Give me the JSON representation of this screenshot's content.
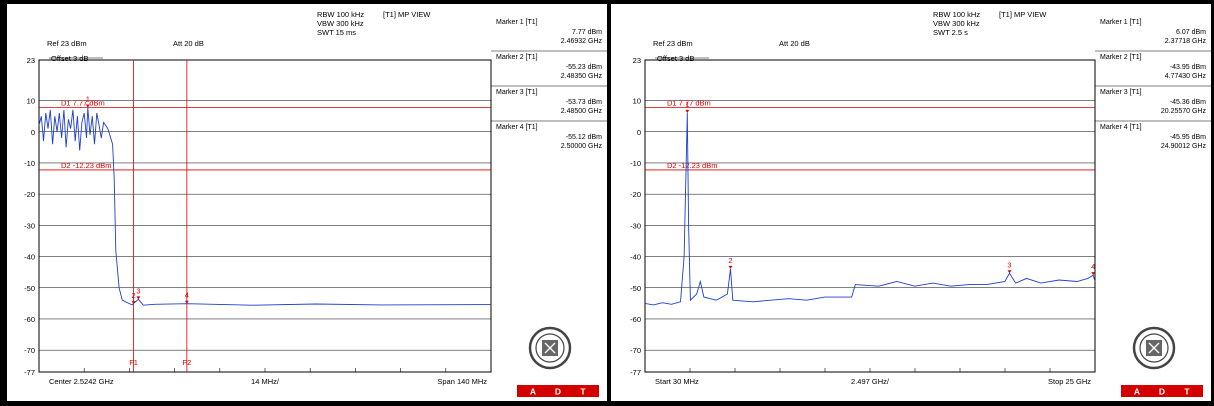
{
  "logo_text": "BUREAU VERITAS 1828",
  "colors": {
    "trace": "#1f3fd0",
    "line": "#d80000",
    "adt_bg": "#d40000",
    "grid": "#000000"
  },
  "chart_data": [
    {
      "type": "line",
      "header": {
        "rbw": "RBW 100 kHz",
        "vbw": "VBW 300 kHz",
        "swt": "SWT 15 ms",
        "mode": "[T1] MP VIEW",
        "ref": "Ref 23 dBm",
        "att": "Att  20 dB",
        "offset": "Offset 3 dB"
      },
      "y_labels": [
        "23",
        "10",
        "0",
        "-10",
        "-20",
        "-30",
        "-40",
        "-50",
        "-60",
        "-70",
        "-77"
      ],
      "ylim": [
        -77,
        23
      ],
      "x_labels": {
        "left": "Center 2.5242 GHz",
        "mid": "14 MHz/",
        "right": "Span 140 MHz"
      },
      "x_range_ghz": [
        2.4542,
        2.5942
      ],
      "display_lines": [
        {
          "label": "D1 7.77 dBm",
          "value": 7.77
        },
        {
          "label": "D2 -12.23 dBm",
          "value": -12.23
        }
      ],
      "frequency_lines": [
        {
          "label": "F1",
          "x": 2.4835
        },
        {
          "label": "F2",
          "x": 2.5
        }
      ],
      "markers": [
        {
          "title": "Marker 1 [T1]",
          "level": "7.77 dBm",
          "freq": "2.46932 GHz",
          "id": "1",
          "x": 2.46932,
          "y": 7.77
        },
        {
          "title": "Marker 2 [T1]",
          "level": "-55.23 dBm",
          "freq": "2.48350 GHz",
          "id": "2",
          "x": 2.4835,
          "y": -55.23
        },
        {
          "title": "Marker 3 [T1]",
          "level": "-53.73 dBm",
          "freq": "2.48500 GHz",
          "id": "3",
          "x": 2.485,
          "y": -53.73
        },
        {
          "title": "Marker 4 [T1]",
          "level": "-55.12 dBm",
          "freq": "2.50000 GHz",
          "id": "4",
          "x": 2.5,
          "y": -55.12
        }
      ],
      "series": [
        {
          "type": "noisy",
          "points": [
            [
              2.4542,
              2
            ],
            [
              2.4549,
              5
            ],
            [
              2.4556,
              -3
            ],
            [
              2.4563,
              6
            ],
            [
              2.457,
              1
            ],
            [
              2.4577,
              7
            ],
            [
              2.4584,
              -4
            ],
            [
              2.4591,
              5
            ],
            [
              2.4598,
              0
            ],
            [
              2.4605,
              6
            ],
            [
              2.4612,
              -2
            ],
            [
              2.4619,
              7
            ],
            [
              2.4626,
              -5
            ],
            [
              2.4633,
              4
            ],
            [
              2.464,
              1
            ],
            [
              2.4647,
              7
            ],
            [
              2.4654,
              -3
            ],
            [
              2.4661,
              5
            ],
            [
              2.4668,
              -6
            ],
            [
              2.4675,
              3
            ],
            [
              2.4682,
              6
            ],
            [
              2.4689,
              -2
            ],
            [
              2.4693,
              7.77
            ],
            [
              2.47,
              -1
            ],
            [
              2.4707,
              5
            ],
            [
              2.4714,
              -4
            ],
            [
              2.4721,
              6
            ],
            [
              2.4728,
              2
            ],
            [
              2.4735,
              -2
            ],
            [
              2.4742,
              3
            ],
            [
              2.4755,
              1
            ],
            [
              2.477,
              -4
            ],
            [
              2.4775,
              -15
            ],
            [
              2.478,
              -38
            ],
            [
              2.479,
              -50
            ],
            [
              2.48,
              -54
            ],
            [
              2.483,
              -55.5
            ],
            [
              2.485,
              -53.7
            ],
            [
              2.4865,
              -55.6
            ],
            [
              2.49,
              -55.3
            ],
            [
              2.5,
              -55.1
            ],
            [
              2.52,
              -55.6
            ],
            [
              2.54,
              -55.2
            ],
            [
              2.56,
              -55.5
            ],
            [
              2.5942,
              -55.4
            ]
          ]
        }
      ]
    },
    {
      "type": "line",
      "header": {
        "rbw": "RBW 100 kHz",
        "vbw": "VBW 300 kHz",
        "swt": "SWT 2.5 s",
        "mode": "[T1] MP VIEW",
        "ref": "Ref 23 dBm",
        "att": "Att  20 dB",
        "offset": "Offset 3 dB"
      },
      "y_labels": [
        "23",
        "10",
        "0",
        "-10",
        "-20",
        "-30",
        "-40",
        "-50",
        "-60",
        "-70",
        "-77"
      ],
      "ylim": [
        -77,
        23
      ],
      "x_labels": {
        "left": "Start 30 MHz",
        "mid": "2.497 GHz/",
        "right": "Stop 25 GHz"
      },
      "x_range_ghz": [
        0.03,
        25
      ],
      "display_lines": [
        {
          "label": "D1 7.77 dBm",
          "value": 7.77
        },
        {
          "label": "D2 -12.23 dBm",
          "value": -12.23
        }
      ],
      "markers": [
        {
          "title": "Marker 1 [T1]",
          "level": "6.07 dBm",
          "freq": "2.37718 GHz",
          "id": "1",
          "x": 2.37718,
          "y": 6.07
        },
        {
          "title": "Marker 2 [T1]",
          "level": "-43.95 dBm",
          "freq": "4.77430 GHz",
          "id": "2",
          "x": 4.7743,
          "y": -43.95
        },
        {
          "title": "Marker 3 [T1]",
          "level": "-45.36 dBm",
          "freq": "20.25570 GHz",
          "id": "3",
          "x": 20.2557,
          "y": -45.36
        },
        {
          "title": "Marker 4 [T1]",
          "level": "-45.95 dBm",
          "freq": "24.90012 GHz",
          "id": "4",
          "x": 24.90012,
          "y": -45.95
        }
      ],
      "series": [
        {
          "type": "line",
          "points": [
            [
              0.03,
              -55
            ],
            [
              0.5,
              -55.5
            ],
            [
              1,
              -54.8
            ],
            [
              1.5,
              -55.3
            ],
            [
              2.0,
              -54.5
            ],
            [
              2.2,
              -40
            ],
            [
              2.377,
              6.07
            ],
            [
              2.45,
              -30
            ],
            [
              2.55,
              -54
            ],
            [
              2.9,
              -52
            ],
            [
              3.1,
              -48
            ],
            [
              3.3,
              -53
            ],
            [
              4.0,
              -54
            ],
            [
              4.6,
              -52
            ],
            [
              4.774,
              -43.95
            ],
            [
              4.9,
              -54
            ],
            [
              6,
              -54.5
            ],
            [
              7,
              -54
            ],
            [
              8,
              -53.5
            ],
            [
              9,
              -54
            ],
            [
              10,
              -53
            ],
            [
              11.5,
              -53
            ],
            [
              11.7,
              -49
            ],
            [
              13,
              -49.5
            ],
            [
              14,
              -48
            ],
            [
              15,
              -49.5
            ],
            [
              16,
              -48.5
            ],
            [
              17,
              -49.5
            ],
            [
              18,
              -49
            ],
            [
              19,
              -49
            ],
            [
              20,
              -48
            ],
            [
              20.2557,
              -45.36
            ],
            [
              20.6,
              -48.5
            ],
            [
              21.2,
              -47
            ],
            [
              22,
              -48.5
            ],
            [
              23,
              -47.5
            ],
            [
              24,
              -48
            ],
            [
              24.6,
              -47
            ],
            [
              24.9,
              -45.95
            ],
            [
              25,
              -48
            ]
          ]
        }
      ]
    }
  ]
}
